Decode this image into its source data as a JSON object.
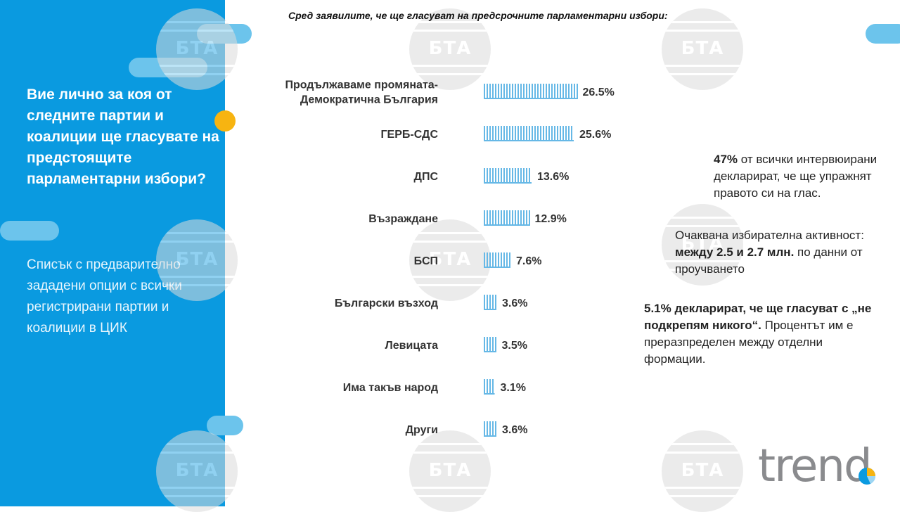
{
  "subtitle": "Сред заявилите, че ще гласуват на  предсрочните парламентарни избори:",
  "question": "Вие лично за коя от следните партии и коалиции ще гласувате на предстоящите парламентарни избори?",
  "description": "Списък с предварително зададени опции с всички регистрирани партии и коалиции в ЦИК",
  "watermark_text": "БТА",
  "colors": {
    "panel": "#0a9ae0",
    "pill": "#6cc4ec",
    "accent": "#f7b411",
    "bar": "#66b8e6"
  },
  "notes": {
    "turnout_bold": "47%",
    "turnout_text": " от всички интервюирани декларират, че ще упражнят правото си на глас.",
    "activity_pre": "Очаквана избирателна активност: ",
    "activity_bold": "между 2.5 и 2.7 млн.",
    "activity_post": " по данни от проучването",
    "none_bold": "5.1% декларират, че ще гласуват с „не подкрепям никого“.",
    "none_text": " Процентът им е преразпределен между отделни формации."
  },
  "logo": {
    "text": "trend",
    "icon": "pie-chart-icon"
  },
  "chart_data": {
    "type": "bar",
    "orientation": "horizontal",
    "categories": [
      "Продължаваме промяната-Демократична България",
      "ГЕРБ-СДС",
      "ДПС",
      "Възраждане",
      "БСП",
      "Български възход",
      "Левицата",
      "Има такъв народ",
      "Други"
    ],
    "values": [
      26.5,
      25.6,
      13.6,
      12.9,
      7.6,
      3.6,
      3.5,
      3.1,
      3.6
    ],
    "value_labels": [
      "26.5%",
      "25.6%",
      "13.6%",
      "12.9%",
      "7.6%",
      "3.6%",
      "3.5%",
      "3.1%",
      "3.6%"
    ],
    "xlim": [
      0,
      30
    ],
    "grid": false,
    "legend": "none"
  }
}
